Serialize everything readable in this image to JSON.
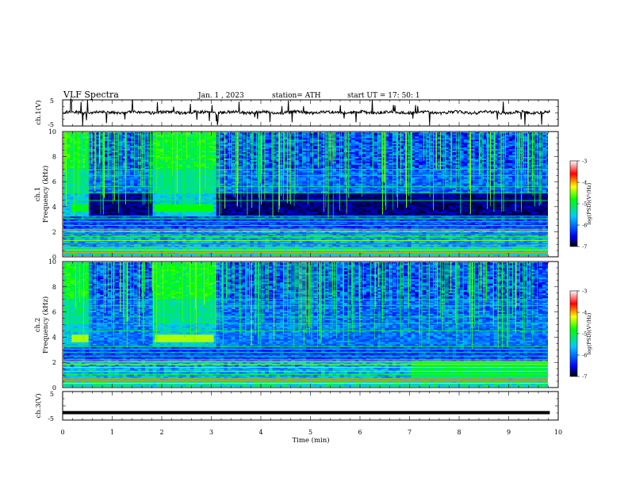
{
  "header": {
    "title": "VLF  Spectra",
    "date": "Jan.  1  , 2023",
    "station": "station= ATH",
    "start": "start  UT  =    17: 50: 1"
  },
  "chart_data": [
    {
      "id": "ch1-voltage",
      "type": "line",
      "ylabel": "ch.1(V)",
      "ylim": [
        -5,
        5
      ],
      "yticks": [
        "5",
        "-5"
      ],
      "xlim": [
        0,
        10
      ]
    },
    {
      "id": "ch1-spectrogram",
      "type": "heatmap",
      "ylabel_line1": "ch.1",
      "ylabel_line2": "Frequency  (kHz)",
      "ylim": [
        0,
        10
      ],
      "yticks": [
        "0",
        "2",
        "4",
        "6",
        "8",
        "10"
      ],
      "xlim": [
        0,
        9.83
      ],
      "colorbar": {
        "label": "log(PSD)(V²/Hz)",
        "range": [
          -7,
          -3
        ],
        "ticks": [
          "-3",
          "-4",
          "-5",
          "-6",
          "-7"
        ],
        "colors": [
          "#000000",
          "#0000ff",
          "#00c8ff",
          "#00ff00",
          "#ffff00",
          "#ff0000",
          "#ffffff"
        ]
      },
      "features": [
        {
          "kind": "broadband-burst",
          "start_min": 0.0,
          "end_min": 0.55
        },
        {
          "kind": "broadband-burst",
          "start_min": 1.85,
          "end_min": 3.1
        },
        {
          "kind": "narrowband-line",
          "freq_khz": 3.9,
          "start_min": 0.18,
          "end_min": 0.52
        },
        {
          "kind": "narrowband-line",
          "freq_khz": 3.9,
          "start_min": 1.85,
          "end_min": 3.05
        }
      ]
    },
    {
      "id": "ch2-spectrogram",
      "type": "heatmap",
      "ylabel_line1": "ch.2",
      "ylabel_line2": "Frequency  (kHz)",
      "ylim": [
        0,
        10
      ],
      "yticks": [
        "0",
        "2",
        "4",
        "6",
        "8",
        "10"
      ],
      "xlim": [
        0,
        9.83
      ],
      "colorbar": {
        "label": "log(PSD)(V²/Hz)",
        "range": [
          -7,
          -3
        ],
        "ticks": [
          "-3",
          "-4",
          "-5",
          "-6",
          "-7"
        ],
        "colors": [
          "#000000",
          "#0000ff",
          "#00c8ff",
          "#00ff00",
          "#ffff00",
          "#ff0000",
          "#ffffff"
        ]
      },
      "features": [
        {
          "kind": "broadband-burst",
          "start_min": 0.0,
          "end_min": 0.55
        },
        {
          "kind": "broadband-burst",
          "start_min": 1.85,
          "end_min": 3.1
        },
        {
          "kind": "narrowband-line",
          "freq_khz": 3.9,
          "start_min": 0.18,
          "end_min": 0.52
        },
        {
          "kind": "narrowband-line",
          "freq_khz": 3.9,
          "start_min": 1.85,
          "end_min": 3.05
        }
      ]
    },
    {
      "id": "ch3-voltage",
      "type": "line",
      "ylabel": "ch.3(V)",
      "ylim": [
        -5,
        5
      ],
      "yticks": [
        "5",
        "-5"
      ],
      "xlim": [
        0,
        10
      ],
      "x": [
        0,
        9.83
      ],
      "y": [
        -2.4,
        -2.4
      ]
    }
  ],
  "time_axis": {
    "label": "Time  (min)",
    "range": [
      0,
      10
    ],
    "ticks": [
      "0",
      "1",
      "2",
      "3",
      "4",
      "5",
      "6",
      "7",
      "8",
      "9",
      "10"
    ]
  }
}
